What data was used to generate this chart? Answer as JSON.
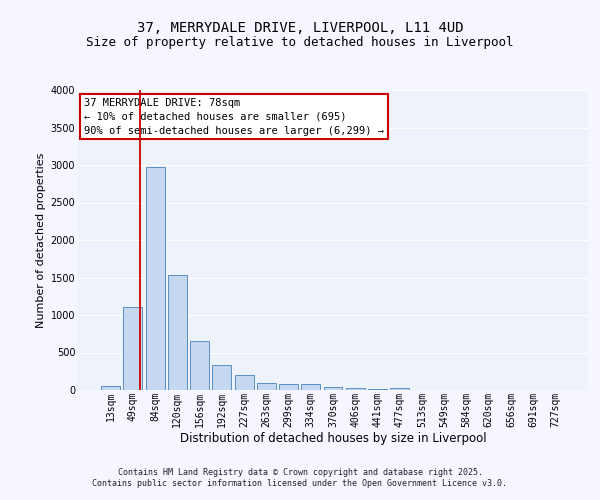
{
  "title1": "37, MERRYDALE DRIVE, LIVERPOOL, L11 4UD",
  "title2": "Size of property relative to detached houses in Liverpool",
  "xlabel": "Distribution of detached houses by size in Liverpool",
  "ylabel": "Number of detached properties",
  "categories": [
    "13sqm",
    "49sqm",
    "84sqm",
    "120sqm",
    "156sqm",
    "192sqm",
    "227sqm",
    "263sqm",
    "299sqm",
    "334sqm",
    "370sqm",
    "406sqm",
    "441sqm",
    "477sqm",
    "513sqm",
    "549sqm",
    "584sqm",
    "620sqm",
    "656sqm",
    "691sqm",
    "727sqm"
  ],
  "values": [
    60,
    1110,
    2970,
    1530,
    650,
    340,
    195,
    90,
    85,
    85,
    35,
    25,
    20,
    30,
    0,
    0,
    0,
    0,
    0,
    0,
    0
  ],
  "bar_color": "#c5d8f0",
  "bar_edge_color": "#5a8fc2",
  "ylim": [
    0,
    4000
  ],
  "yticks": [
    0,
    500,
    1000,
    1500,
    2000,
    2500,
    3000,
    3500,
    4000
  ],
  "vline_color": "#cc0000",
  "annotation_text": "37 MERRYDALE DRIVE: 78sqm\n← 10% of detached houses are smaller (695)\n90% of semi-detached houses are larger (6,299) →",
  "annotation_box_color": "#cc0000",
  "footer_text": "Contains HM Land Registry data © Crown copyright and database right 2025.\nContains public sector information licensed under the Open Government Licence v3.0.",
  "bg_color": "#eef2fb",
  "grid_color": "#ffffff",
  "fig_bg_color": "#f5f6ff",
  "title_fontsize": 10,
  "subtitle_fontsize": 9,
  "tick_fontsize": 7,
  "xlabel_fontsize": 8.5,
  "ylabel_fontsize": 8,
  "footer_fontsize": 6,
  "annot_fontsize": 7.5
}
